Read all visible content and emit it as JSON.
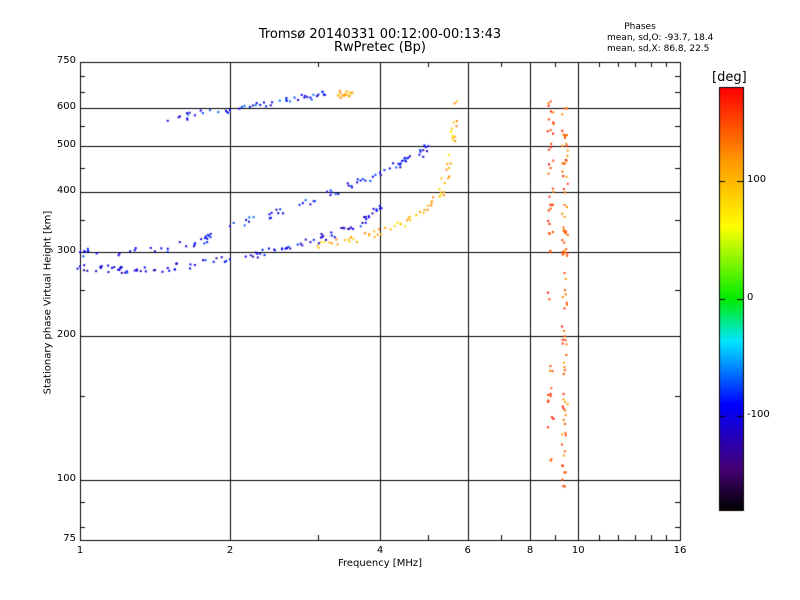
{
  "chart_data": {
    "type": "scatter",
    "title": "Tromsø 20140331 00:12:00-00:13:43",
    "subtitle": "RwPretec (Bp)",
    "xlabel": "Frequency [MHz]",
    "ylabel": "Stationary phase Virtual Height [km]",
    "x_scale": "log",
    "y_scale": "log",
    "xlim": [
      1,
      16
    ],
    "ylim": [
      75,
      750
    ],
    "x_ticks": [
      1,
      2,
      4,
      6,
      8,
      10,
      16
    ],
    "x_tick_labels": [
      "1",
      "2",
      "4",
      "6",
      "8",
      "10",
      "16"
    ],
    "x_minor_ticks": [
      3,
      5,
      7,
      9,
      11,
      12,
      13,
      14,
      15
    ],
    "y_ticks": [
      75,
      100,
      200,
      300,
      400,
      500,
      600,
      750
    ],
    "y_tick_labels": [
      "75",
      "100",
      "200",
      "300",
      "400",
      "500",
      "600",
      "750"
    ],
    "y_minor_ticks": [
      80,
      90,
      150,
      250,
      350,
      450,
      550,
      650,
      700
    ],
    "x_gridlines": [
      2,
      4,
      6,
      8,
      10
    ],
    "y_gridlines": [
      100,
      200,
      300,
      400,
      500,
      600
    ],
    "grid": true,
    "color_scale": {
      "label": "[deg]",
      "range": [
        -180,
        180
      ],
      "ticks": [
        100,
        0,
        -100
      ],
      "tick_labels": [
        "100",
        "0",
        "-100"
      ],
      "colormap": "rainbow (black-purple-blue-cyan-green-yellow-orange-red)"
    },
    "phase_stats": {
      "heading": "Phases",
      "o_label": "mean, sd,O:",
      "o_values": "-93.7, 18.4",
      "x_label": "mean, sd,X:",
      "x_values": "86.8, 22.5"
    },
    "series": [
      {
        "trace": "O-mode F-layer trace",
        "phase": -100,
        "x": [
          1.0,
          1.1,
          1.2,
          1.3,
          1.5,
          1.7,
          2.0,
          2.3,
          2.6,
          2.9,
          3.2,
          3.5,
          3.8,
          4.0
        ],
        "y": [
          280,
          278,
          276,
          276,
          278,
          282,
          290,
          298,
          306,
          315,
          325,
          338,
          355,
          370
        ]
      },
      {
        "trace": "O-mode upper band",
        "phase": -95,
        "x": [
          1.0,
          1.2,
          1.5,
          1.8,
          2.0,
          2.4,
          2.8,
          3.2,
          3.6,
          4.0,
          4.4,
          4.8,
          5.0
        ],
        "y": [
          300,
          298,
          305,
          320,
          340,
          360,
          380,
          400,
          420,
          440,
          460,
          480,
          500
        ]
      },
      {
        "trace": "O-mode echoes near 600 km",
        "phase": -90,
        "x": [
          1.5,
          1.7,
          2.0,
          2.3,
          2.6,
          2.9,
          3.1
        ],
        "y": [
          565,
          580,
          595,
          610,
          622,
          632,
          640
        ]
      },
      {
        "trace": "X-mode F-layer trace",
        "phase": 100,
        "x": [
          3.0,
          3.4,
          3.8,
          4.2,
          4.6,
          5.0,
          5.3,
          5.5,
          5.6,
          5.7
        ],
        "y": [
          310,
          318,
          325,
          335,
          350,
          375,
          400,
          450,
          520,
          620
        ]
      },
      {
        "trace": "X-mode echoes near 640 km",
        "phase": 100,
        "x": [
          3.3,
          3.4,
          3.5
        ],
        "y": [
          640,
          642,
          645
        ]
      },
      {
        "trace": "sporadic echoes near 9.4 MHz",
        "phase": 140,
        "x": [
          9.4,
          9.4,
          9.4,
          9.4,
          9.4,
          9.4,
          9.4,
          9.4,
          9.4,
          9.4,
          9.4,
          9.4
        ],
        "y": [
          600,
          520,
          460,
          400,
          330,
          300,
          250,
          200,
          170,
          140,
          115,
          97
        ]
      },
      {
        "trace": "sporadic echoes near 8.8 MHz",
        "phase": 150,
        "x": [
          8.8,
          8.8,
          8.8,
          8.8,
          8.8,
          8.8,
          8.8
        ],
        "y": [
          620,
          540,
          450,
          370,
          300,
          150,
          110
        ]
      }
    ]
  }
}
